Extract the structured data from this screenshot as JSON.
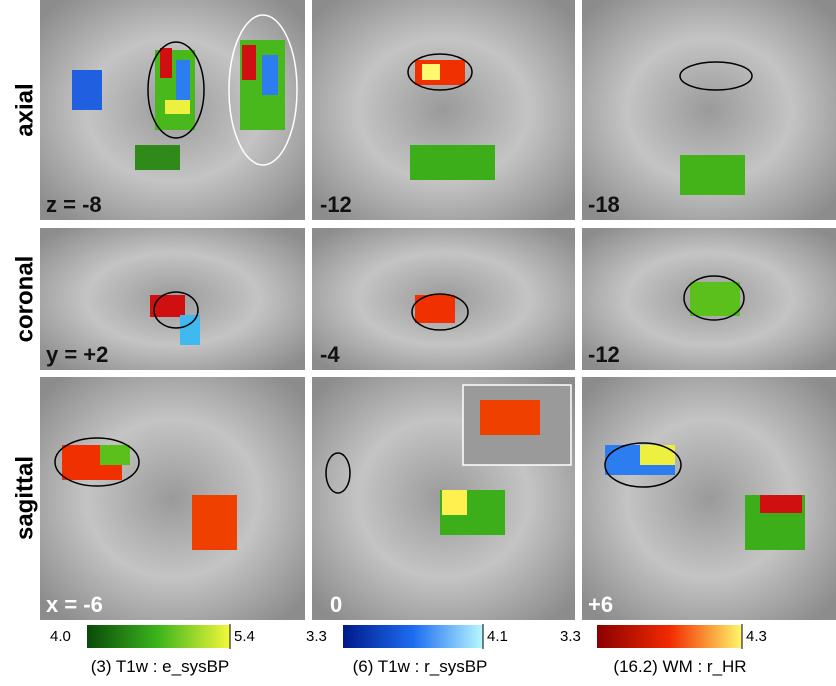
{
  "rows": [
    {
      "label": "axial",
      "panels": [
        "z = -8",
        "-12",
        "-18"
      ]
    },
    {
      "label": "coronal",
      "panels": [
        "y = +2",
        "-4",
        "-12"
      ]
    },
    {
      "label": "sagittal",
      "panels": [
        "x = -6",
        "0",
        "+6"
      ]
    }
  ],
  "colorbars": [
    {
      "min": "4.0",
      "max": "5.4",
      "caption": "(3) T1w : e_sysBP"
    },
    {
      "min": "3.3",
      "max": "4.1",
      "caption": "(6) T1w : r_sysBP"
    },
    {
      "min": "3.3",
      "max": "4.3",
      "caption": "(16.2) WM : r_HR"
    }
  ]
}
